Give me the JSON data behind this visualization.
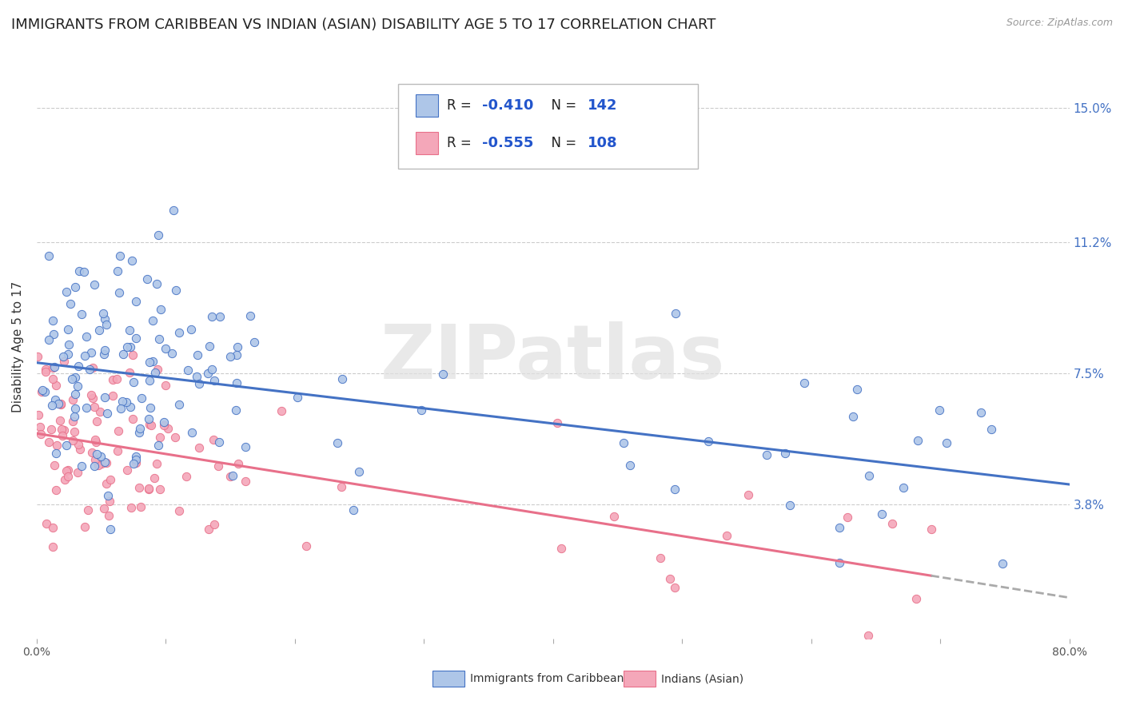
{
  "title": "IMMIGRANTS FROM CARIBBEAN VS INDIAN (ASIAN) DISABILITY AGE 5 TO 17 CORRELATION CHART",
  "source": "Source: ZipAtlas.com",
  "ylabel": "Disability Age 5 to 17",
  "xlim": [
    0.0,
    0.8
  ],
  "ylim": [
    0.0,
    0.165
  ],
  "xtick_positions": [
    0.0,
    0.1,
    0.2,
    0.3,
    0.4,
    0.5,
    0.6,
    0.7,
    0.8
  ],
  "xticklabels_show": [
    "0.0%",
    "",
    "",
    "",
    "",
    "",
    "",
    "",
    "80.0%"
  ],
  "ytick_positions": [
    0.038,
    0.075,
    0.112,
    0.15
  ],
  "ytick_labels": [
    "3.8%",
    "7.5%",
    "11.2%",
    "15.0%"
  ],
  "caribbean_R": -0.41,
  "caribbean_N": 142,
  "indian_R": -0.555,
  "indian_N": 108,
  "caribbean_color": "#aec6e8",
  "caribbean_line_color": "#4472c4",
  "indian_color": "#f4a7b9",
  "indian_line_color": "#e8708a",
  "legend_label_caribbean": "Immigrants from Caribbean",
  "legend_label_indian": "Indians (Asian)",
  "watermark": "ZIPatlas",
  "background_color": "#ffffff",
  "grid_color": "#cccccc",
  "title_fontsize": 13,
  "axis_label_fontsize": 11,
  "tick_fontsize": 10,
  "seed": 42,
  "car_intercept": 0.078,
  "car_slope": -0.043,
  "ind_intercept": 0.058,
  "ind_slope": -0.058
}
